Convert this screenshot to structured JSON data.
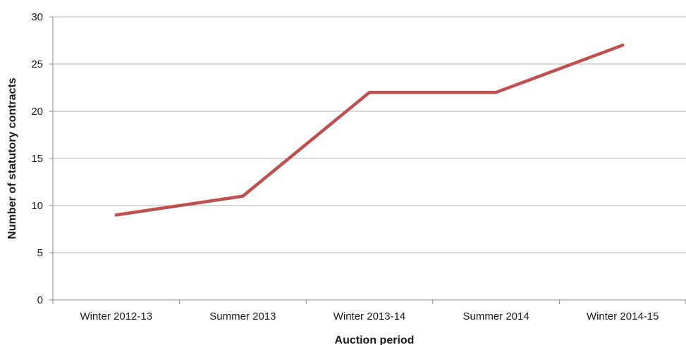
{
  "chart_data": {
    "type": "line",
    "title": "",
    "xlabel": "Auction period",
    "ylabel": "Number of statutory contracts",
    "categories": [
      "Winter 2012-13",
      "Summer 2013",
      "Winter 2013-14",
      "Summer 2014",
      "Winter 2014-15"
    ],
    "series": [
      {
        "values": [
          9,
          11,
          22,
          22,
          27
        ],
        "color": "#c0504d"
      }
    ],
    "ylim": [
      0,
      30
    ],
    "yticks": [
      0,
      5,
      10,
      15,
      20,
      25,
      30
    ],
    "grid": true,
    "legend": "none"
  }
}
